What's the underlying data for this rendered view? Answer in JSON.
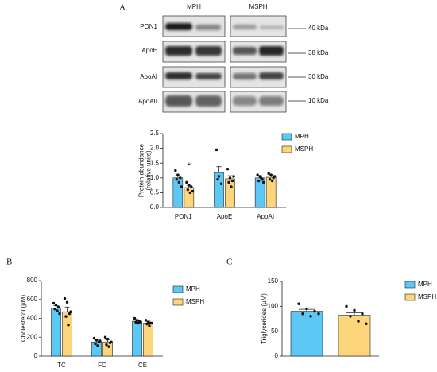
{
  "panels": [
    "A",
    "B",
    "C"
  ],
  "blot": {
    "groups": [
      "MPH",
      "MSPH"
    ],
    "proteins": [
      "PON1",
      "ApoE",
      "ApoAI",
      "ApoAII"
    ],
    "sizes": [
      "40 kDa",
      "38 kDa",
      "30 kDa",
      "10 kDa"
    ]
  },
  "chart_data": [
    {
      "type": "bar",
      "ylabel": [
        "Protein abundance",
        "(relative units)"
      ],
      "categories": [
        "PON1",
        "ApoE",
        "ApoAI"
      ],
      "ylim": [
        0,
        2.5
      ],
      "yticks": [
        {
          "value": 0,
          "label": "0.0"
        },
        0.5,
        {
          "value": 1,
          "label": "1.0"
        },
        1.5,
        {
          "value": 2,
          "label": "2.0"
        },
        2.5
      ],
      "annotation": "*",
      "annotation_color": "#e8312f",
      "series": [
        {
          "name": "MPH",
          "color": "#5bc8f5",
          "values": [
            1.0,
            1.18,
            1.0
          ],
          "errors": [
            0.1,
            0.2,
            0.07
          ],
          "points": [
            [
              1.25,
              1.1,
              1.0,
              0.95,
              0.85,
              0.7
            ],
            [
              1.95,
              1.05,
              0.8,
              0.95
            ],
            [
              1.1,
              1.05,
              0.95,
              0.9,
              1.0,
              0.85
            ]
          ]
        },
        {
          "name": "MSPH",
          "color": "#fdd57a",
          "values": [
            0.67,
            0.97,
            1.02
          ],
          "errors": [
            0.08,
            0.1,
            0.08
          ],
          "points": [
            [
              0.85,
              0.75,
              0.7,
              0.6,
              0.5,
              0.55
            ],
            [
              1.3,
              1.0,
              0.9,
              0.85,
              0.7,
              1.05
            ],
            [
              1.15,
              1.1,
              1.0,
              0.95,
              0.9,
              1.05
            ]
          ]
        }
      ]
    },
    {
      "type": "bar",
      "ylabel": [
        "Cholesterol (µM)"
      ],
      "categories": [
        "TC",
        "FC",
        "CE"
      ],
      "ylim": [
        0,
        800
      ],
      "yticks": [
        0,
        200,
        400,
        600,
        800
      ],
      "series": [
        {
          "name": "MPH",
          "color": "#5bc8f5",
          "values": [
            510,
            150,
            370
          ],
          "errors": [
            25,
            20,
            15
          ],
          "points": [
            [
              560,
              540,
              520,
              500,
              480,
              450
            ],
            [
              190,
              170,
              150,
              130,
              110,
              160
            ],
            [
              400,
              380,
              370,
              360,
              350,
              360
            ]
          ]
        },
        {
          "name": "MSPH",
          "color": "#fdd57a",
          "values": [
            470,
            150,
            350
          ],
          "errors": [
            50,
            25,
            20
          ],
          "points": [
            [
              610,
              570,
              450,
              420,
              330,
              470
            ],
            [
              200,
              180,
              140,
              120,
              100,
              150
            ],
            [
              380,
              360,
              350,
              340,
              320,
              350
            ]
          ]
        }
      ]
    },
    {
      "type": "bar",
      "ylabel": [
        "Triglycerides (µM)"
      ],
      "categories": [
        null
      ],
      "ylim": [
        0,
        150
      ],
      "yticks": [
        0,
        50,
        100,
        150
      ],
      "series": [
        {
          "name": "MPH",
          "color": "#5bc8f5",
          "values": [
            90
          ],
          "errors": [
            4
          ],
          "points": [
            [
              105,
              95,
              90,
              85,
              80,
              85
            ]
          ]
        },
        {
          "name": "MSPH",
          "color": "#fdd57a",
          "values": [
            82
          ],
          "errors": [
            5
          ],
          "points": [
            [
              100,
              92,
              85,
              80,
              70,
              65
            ]
          ]
        }
      ]
    }
  ]
}
